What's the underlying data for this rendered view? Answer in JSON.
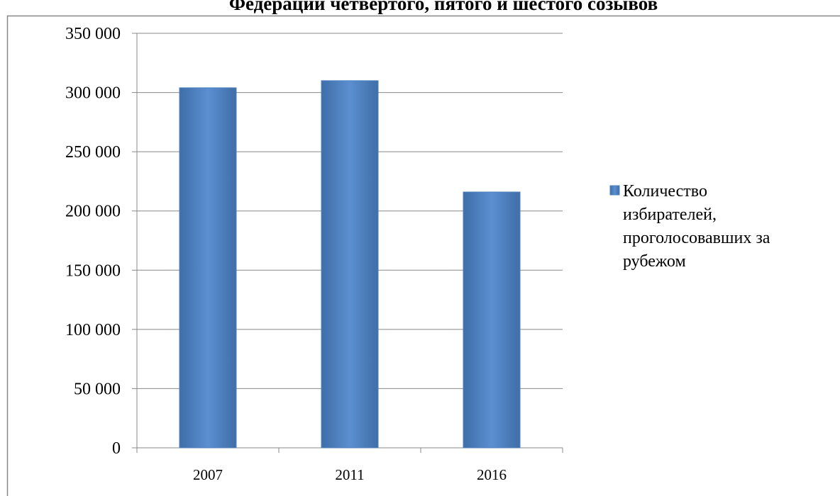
{
  "chart_data": {
    "type": "bar",
    "title": "Федерации четвертого, пятого и шестого созывов",
    "categories": [
      "2007",
      "2011",
      "2016"
    ],
    "series": [
      {
        "name": "Количество избирателей, проголосовавших за рубежом",
        "color": "#4f81bd",
        "values": [
          304000,
          310000,
          216000
        ]
      }
    ],
    "ylim": [
      0,
      350000
    ],
    "yticks": [
      0,
      {
        "value": 50000,
        "label": "50 000"
      },
      {
        "value": 100000,
        "label": "100 000"
      },
      {
        "value": 150000,
        "label": "150 000"
      },
      {
        "value": 200000,
        "label": "200 000"
      },
      {
        "value": 250000,
        "label": "250 000"
      },
      {
        "value": 300000,
        "label": "300 000"
      },
      {
        "value": 350000,
        "label": "350 000"
      }
    ],
    "grid": true,
    "legend": "right"
  }
}
